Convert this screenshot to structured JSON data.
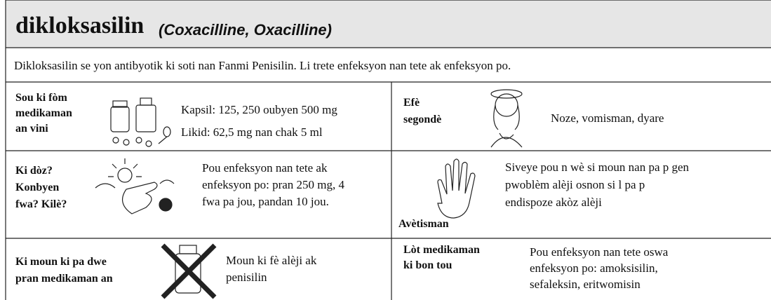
{
  "header": {
    "title": "dikloksasilin",
    "subtitle": "(Coxacilline, Oxacilline)"
  },
  "description": "Dikloksasilin se yon antibyotik ki soti nan Fanmi Penisilin.  Li trete enfeksyon nan tete ak enfeksyon po.",
  "sections": [
    {
      "label": [
        "Sou ki fòm",
        "medikaman",
        "an vini"
      ],
      "text": [
        "Kapsil: 125, 250 oubyen 500 mg",
        "Likid: 62,5 mg nan chak 5 ml"
      ]
    },
    {
      "label": [
        "Efè",
        "segondè"
      ],
      "text": [
        "Noze, vomisman, dyare"
      ]
    },
    {
      "label": [
        "Ki dòz?",
        "Konbyen",
        "fwa?  Kilè?"
      ],
      "text": [
        "Pou enfeksyon nan tete ak",
        "enfeksyon po: pran 250 mg, 4",
        "fwa pa jou, pandan 10 jou."
      ]
    },
    {
      "label": [
        "Avètisman"
      ],
      "text": [
        "Siveye pou n wè si moun nan pa p gen",
        "pwoblèm alèji osnon si l pa p",
        "endispoze akòz alèji"
      ]
    },
    {
      "label": [
        "Ki moun ki pa dwe",
        "pran medikaman an"
      ],
      "text": [
        "Moun ki fè alèji ak",
        "penisilin"
      ]
    },
    {
      "label": [
        "Lòt medikaman",
        "ki bon tou"
      ],
      "text": [
        "Pou enfeksyon nan tete oswa",
        "enfeksyon po:  amoksisilin,",
        "sefaleksin, eritwomisin"
      ]
    }
  ]
}
